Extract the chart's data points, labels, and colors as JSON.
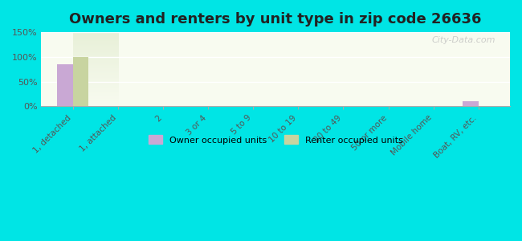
{
  "title": "Owners and renters by unit type in zip code 26636",
  "categories": [
    "1, detached",
    "1, attached",
    "2",
    "3 or 4",
    "5 to 9",
    "10 to 19",
    "20 to 49",
    "50 or more",
    "Mobile home",
    "Boat, RV, etc."
  ],
  "owner_values": [
    85,
    0,
    0,
    0,
    0,
    0,
    0,
    0,
    0,
    11
  ],
  "renter_values": [
    100,
    0,
    0,
    0,
    0,
    0,
    0,
    0,
    0,
    0
  ],
  "owner_color": "#c9a8d4",
  "renter_color": "#c8d4a0",
  "background_outer": "#00e5e5",
  "background_inner_top": "#e8f0d8",
  "background_inner_bottom": "#f8fbf0",
  "title_fontsize": 13,
  "ylim": [
    0,
    150
  ],
  "yticks": [
    0,
    50,
    100,
    150
  ],
  "ytick_labels": [
    "0%",
    "50%",
    "100%",
    "150%"
  ],
  "legend_owner": "Owner occupied units",
  "legend_renter": "Renter occupied units",
  "bar_width": 0.35,
  "watermark": "City-Data.com"
}
